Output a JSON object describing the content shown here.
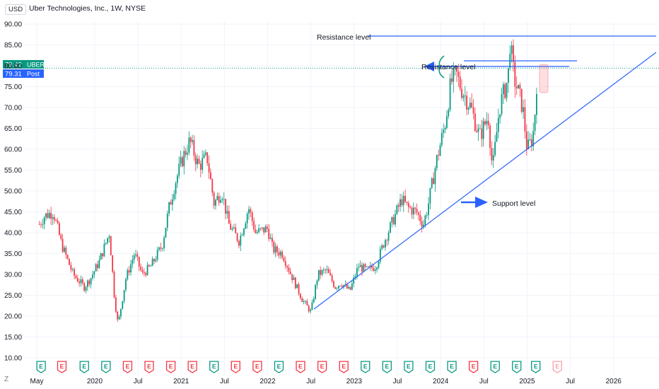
{
  "header": {
    "currency": "USD",
    "title": "Uber Technologies, Inc., 1W, NYSE"
  },
  "footer": {
    "logo": "Z"
  },
  "chart_data": {
    "type": "candlestick",
    "title": "Uber Technologies, Inc., 1W, NYSE",
    "xlabel": "",
    "ylabel": "",
    "ylim": [
      10,
      90
    ],
    "y_ticks": [
      "90.00",
      "85.00",
      "80.00",
      "75.00",
      "70.00",
      "65.00",
      "60.00",
      "55.00",
      "50.00",
      "45.00",
      "40.00",
      "35.00",
      "30.00",
      "25.00",
      "20.00",
      "15.00",
      "10.00"
    ],
    "x_ticks": [
      {
        "label": "May",
        "t": 2019.33
      },
      {
        "label": "2020",
        "t": 2020.0
      },
      {
        "label": "Jul",
        "t": 2020.5
      },
      {
        "label": "2021",
        "t": 2021.0
      },
      {
        "label": "Jul",
        "t": 2021.5
      },
      {
        "label": "2022",
        "t": 2022.0
      },
      {
        "label": "Jul",
        "t": 2022.5
      },
      {
        "label": "2023",
        "t": 2023.0
      },
      {
        "label": "Jul",
        "t": 2023.5
      },
      {
        "label": "2024",
        "t": 2024.0
      },
      {
        "label": "Jul",
        "t": 2024.5
      },
      {
        "label": "2025",
        "t": 2025.0
      },
      {
        "label": "Jul",
        "t": 2025.5
      },
      {
        "label": "2026",
        "t": 2026.0
      }
    ],
    "price_labels": [
      {
        "price": 79.42,
        "text": "79.42",
        "tag": "UBER",
        "color": "#089981"
      },
      {
        "price": 79.31,
        "text": "79.31",
        "tag": "Post",
        "color": "#2962ff"
      }
    ],
    "anchors": [
      [
        2019.36,
        42
      ],
      [
        2019.42,
        44
      ],
      [
        2019.52,
        45
      ],
      [
        2019.62,
        37
      ],
      [
        2019.75,
        30
      ],
      [
        2019.88,
        27
      ],
      [
        2019.95,
        29
      ],
      [
        2020.05,
        33
      ],
      [
        2020.17,
        40
      ],
      [
        2020.23,
        24
      ],
      [
        2020.27,
        18
      ],
      [
        2020.36,
        29
      ],
      [
        2020.46,
        35
      ],
      [
        2020.55,
        30
      ],
      [
        2020.65,
        32
      ],
      [
        2020.78,
        37
      ],
      [
        2020.86,
        46
      ],
      [
        2020.93,
        52
      ],
      [
        2021.02,
        58
      ],
      [
        2021.1,
        62
      ],
      [
        2021.2,
        56
      ],
      [
        2021.3,
        58
      ],
      [
        2021.38,
        47
      ],
      [
        2021.47,
        50
      ],
      [
        2021.55,
        42
      ],
      [
        2021.67,
        38
      ],
      [
        2021.78,
        46
      ],
      [
        2021.86,
        40
      ],
      [
        2022.0,
        41
      ],
      [
        2022.06,
        36
      ],
      [
        2022.17,
        35
      ],
      [
        2022.27,
        30
      ],
      [
        2022.4,
        24
      ],
      [
        2022.5,
        21
      ],
      [
        2022.58,
        30
      ],
      [
        2022.68,
        31
      ],
      [
        2022.78,
        27
      ],
      [
        2022.85,
        28
      ],
      [
        2022.95,
        26
      ],
      [
        2023.05,
        32
      ],
      [
        2023.15,
        31
      ],
      [
        2023.25,
        32
      ],
      [
        2023.35,
        38
      ],
      [
        2023.45,
        43
      ],
      [
        2023.55,
        48
      ],
      [
        2023.62,
        46
      ],
      [
        2023.72,
        45
      ],
      [
        2023.8,
        42
      ],
      [
        2023.85,
        46
      ],
      [
        2023.95,
        57
      ],
      [
        2024.05,
        66
      ],
      [
        2024.12,
        76
      ],
      [
        2024.18,
        78
      ],
      [
        2024.23,
        75
      ],
      [
        2024.35,
        70
      ],
      [
        2024.45,
        63
      ],
      [
        2024.55,
        68
      ],
      [
        2024.6,
        55
      ],
      [
        2024.68,
        70
      ],
      [
        2024.78,
        77
      ],
      [
        2024.8,
        86
      ],
      [
        2024.85,
        77
      ],
      [
        2024.95,
        70
      ],
      [
        2025.0,
        60
      ],
      [
        2025.05,
        62
      ],
      [
        2025.08,
        65
      ],
      [
        2025.12,
        79.42
      ]
    ],
    "earnings_events": [
      {
        "label": "E",
        "t": 2019.38,
        "kind": "green"
      },
      {
        "label": "E",
        "t": 2019.62,
        "kind": "red"
      },
      {
        "label": "E",
        "t": 2019.88,
        "kind": "green"
      },
      {
        "label": "E",
        "t": 2020.13,
        "kind": "green"
      },
      {
        "label": "E",
        "t": 2020.38,
        "kind": "red"
      },
      {
        "label": "E",
        "t": 2020.63,
        "kind": "red"
      },
      {
        "label": "E",
        "t": 2020.88,
        "kind": "red"
      },
      {
        "label": "E",
        "t": 2021.13,
        "kind": "red"
      },
      {
        "label": "E",
        "t": 2021.38,
        "kind": "green"
      },
      {
        "label": "E",
        "t": 2021.63,
        "kind": "red"
      },
      {
        "label": "E",
        "t": 2021.88,
        "kind": "red"
      },
      {
        "label": "E",
        "t": 2022.13,
        "kind": "green"
      },
      {
        "label": "E",
        "t": 2022.38,
        "kind": "red"
      },
      {
        "label": "E",
        "t": 2022.63,
        "kind": "red"
      },
      {
        "label": "E",
        "t": 2022.88,
        "kind": "red"
      },
      {
        "label": "E",
        "t": 2023.13,
        "kind": "green"
      },
      {
        "label": "E",
        "t": 2023.38,
        "kind": "green"
      },
      {
        "label": "E",
        "t": 2023.63,
        "kind": "green"
      },
      {
        "label": "E",
        "t": 2023.88,
        "kind": "green"
      },
      {
        "label": "E",
        "t": 2024.13,
        "kind": "green"
      },
      {
        "label": "E",
        "t": 2024.38,
        "kind": "red"
      },
      {
        "label": "E",
        "t": 2024.63,
        "kind": "green"
      },
      {
        "label": "E",
        "t": 2024.88,
        "kind": "green"
      },
      {
        "label": "E",
        "t": 2025.1,
        "kind": "green"
      },
      {
        "label": "E",
        "t": 2025.35,
        "kind": "future"
      }
    ],
    "annotations": {
      "resistance_top": {
        "text": "Resistance level",
        "price": 87.2
      },
      "resistance_mid": {
        "text": "Resistance level",
        "price": 80.7
      },
      "support": {
        "text": "Support level"
      }
    },
    "colors": {
      "up": "#089981",
      "down": "#f23645",
      "line": "#2962ff",
      "grid": "#f0f3fa",
      "text": "#131722"
    }
  }
}
